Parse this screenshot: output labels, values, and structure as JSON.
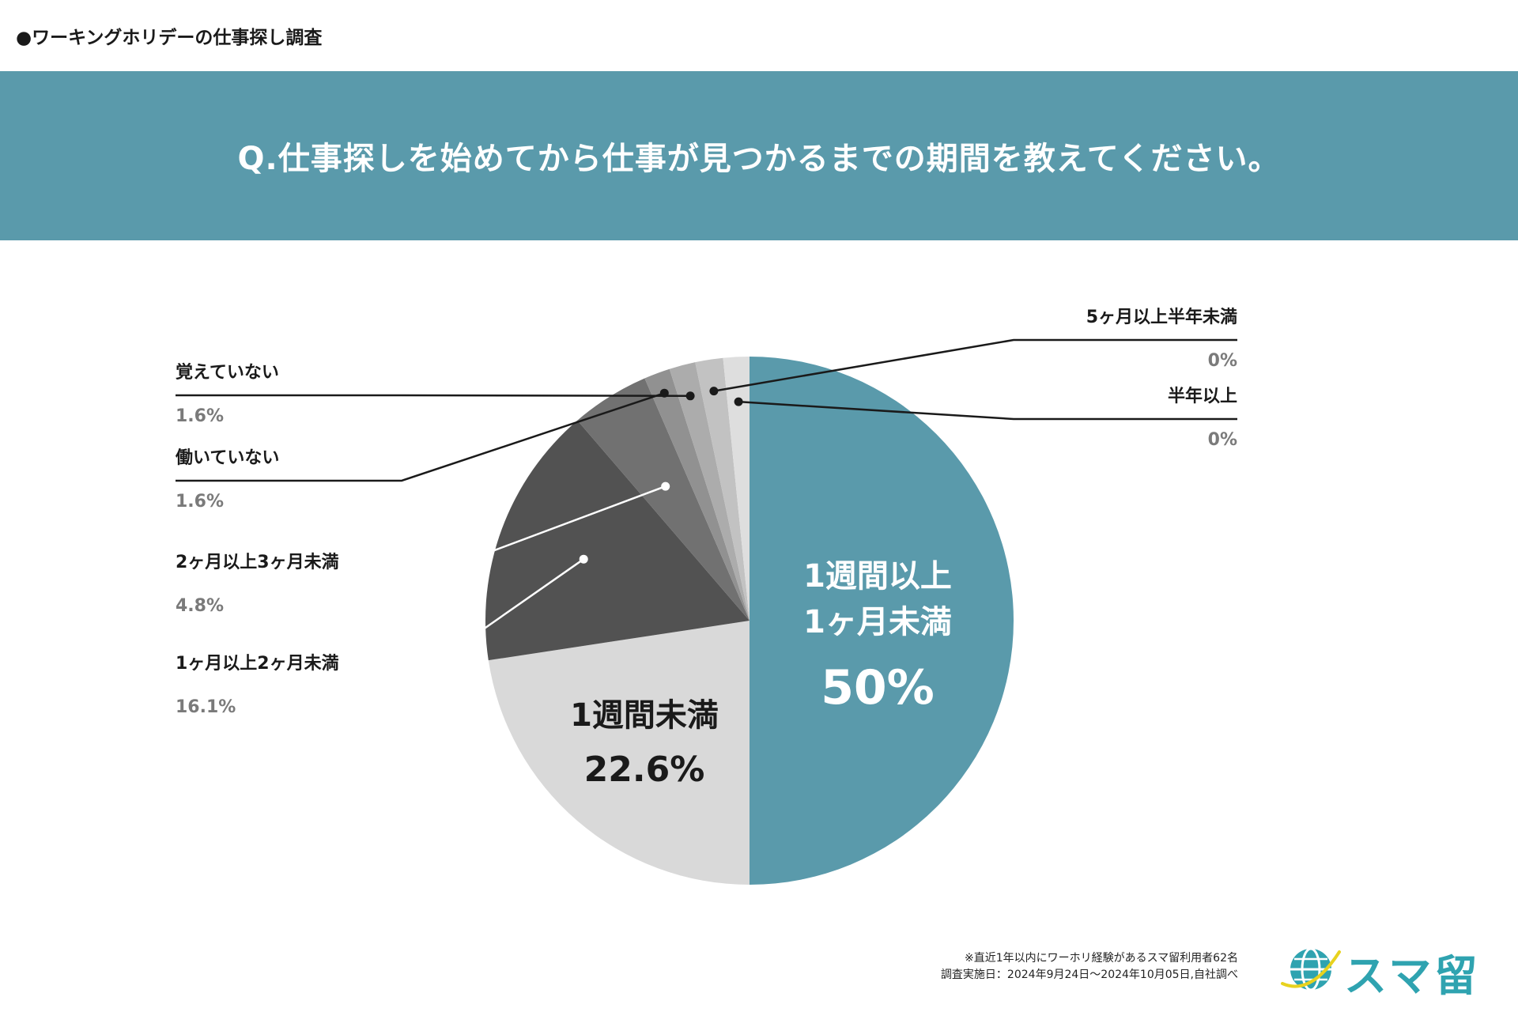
{
  "survey_tag": "●ワーキングホリデーの仕事探し調査",
  "question": "Q.仕事探しを始めてから仕事が見つかるまでの期間を教えてください。",
  "colors": {
    "banner": "#5a9aab",
    "logo": "#2fa3b0"
  },
  "chart_data": {
    "type": "pie",
    "title": "Q.仕事探しを始めてから仕事が見つかるまでの期間を教えてください。",
    "start": "12 o'clock, clockwise",
    "slices": [
      {
        "label": "1週間以上1ヶ月未満",
        "label_lines": [
          "1週間以上",
          "1ヶ月未満"
        ],
        "value_label": "50%",
        "value": 50.0,
        "color": "#5a9aab",
        "label_placement": "inside"
      },
      {
        "label": "1週間未満",
        "label_lines": [
          "1週間未満"
        ],
        "value_label": "22.6%",
        "value": 22.6,
        "color": "#d9d9d9",
        "label_placement": "inside"
      },
      {
        "label": "1ヶ月以上2ヶ月未満",
        "value_label": "16.1%",
        "value": 16.1,
        "color": "#525252",
        "label_placement": "callout-left"
      },
      {
        "label": "2ヶ月以上3ヶ月未満",
        "value_label": "4.8%",
        "value": 4.8,
        "color": "#717171",
        "label_placement": "callout-left"
      },
      {
        "label": "働いていない",
        "value_label": "1.6%",
        "value": 1.6,
        "color": "#919191",
        "label_placement": "callout-left"
      },
      {
        "label": "覚えていない",
        "value_label": "1.6%",
        "value": 1.6,
        "color": "#acacac",
        "label_placement": "callout-left"
      },
      {
        "label": "5ヶ月以上半年未満",
        "value_label": "0%",
        "value": 0,
        "display_share": 1.7,
        "color": "#c2c2c2",
        "label_placement": "callout-right"
      },
      {
        "label": "半年以上",
        "value_label": "0%",
        "value": 0,
        "display_share": 1.6,
        "color": "#dedede",
        "label_placement": "callout-right"
      }
    ]
  },
  "footnote": {
    "line1": "※直近1年以内にワーホリ経験があるスマ留利用者62名",
    "line2": "調査実施日：2024年9月24日〜2024年10月05日,自社調べ"
  },
  "logo": {
    "text": "スマ留"
  }
}
